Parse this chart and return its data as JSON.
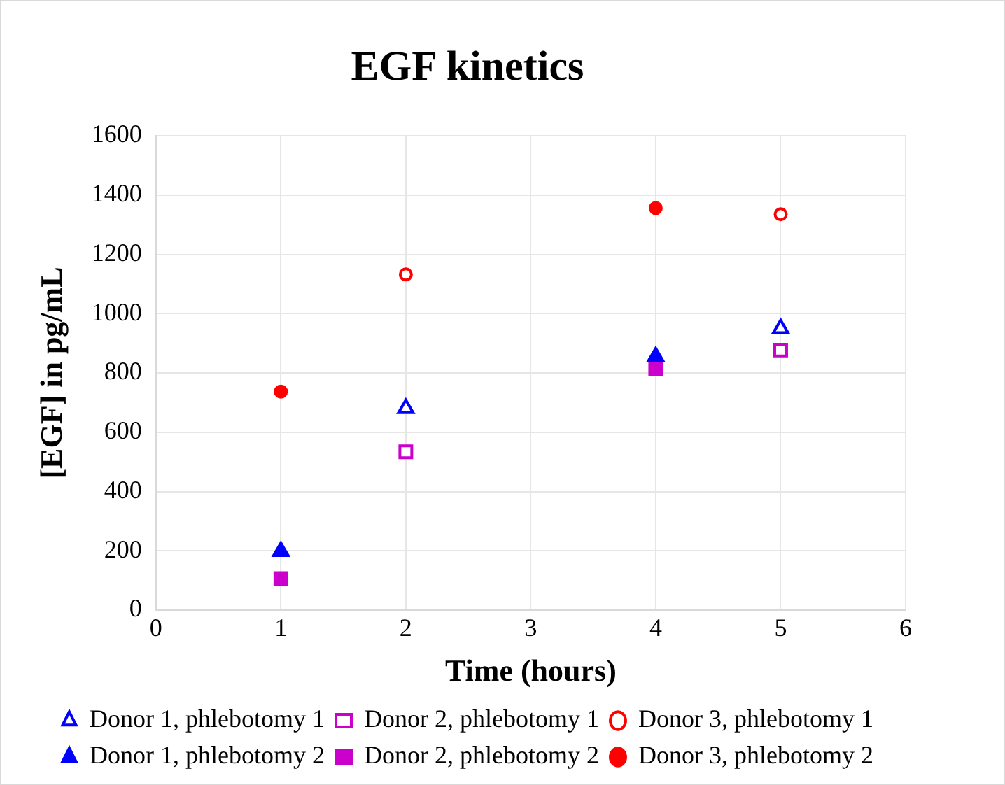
{
  "chart_data": {
    "type": "scatter",
    "title": "EGF kinetics",
    "xlabel": "Time (hours)",
    "ylabel": "[EGF] in pg/mL",
    "xlim": [
      0,
      6
    ],
    "xticks": [
      0,
      1,
      2,
      3,
      4,
      5,
      6
    ],
    "ylim": [
      0,
      1600
    ],
    "yticks": [
      0,
      200,
      400,
      600,
      800,
      1000,
      1200,
      1400,
      1600
    ],
    "grid": true,
    "legend": "bottom",
    "series": [
      {
        "name": "Donor 1, phlebotomy 1",
        "color": "#0000ff",
        "marker": "triangle-open",
        "x": [
          2,
          5
        ],
        "values": [
          680,
          950
        ]
      },
      {
        "name": "Donor 2, phlebotomy 1",
        "color": "#cc00cc",
        "marker": "square-open",
        "x": [
          2,
          5
        ],
        "values": [
          534,
          877
        ]
      },
      {
        "name": "Donor 3, phlebotomy 1",
        "color": "#ff0000",
        "marker": "circle-open",
        "x": [
          2,
          5
        ],
        "values": [
          1132,
          1335
        ]
      },
      {
        "name": "Donor 1, phlebotomy 2",
        "color": "#0000ff",
        "marker": "triangle",
        "x": [
          1,
          4
        ],
        "values": [
          198,
          855
        ]
      },
      {
        "name": "Donor 2, phlebotomy 2",
        "color": "#cc00cc",
        "marker": "square",
        "x": [
          1,
          4
        ],
        "values": [
          106,
          815
        ]
      },
      {
        "name": "Donor 3, phlebotomy 2",
        "color": "#ff0000",
        "marker": "circle",
        "x": [
          1,
          4
        ],
        "values": [
          737,
          1356
        ]
      }
    ]
  }
}
